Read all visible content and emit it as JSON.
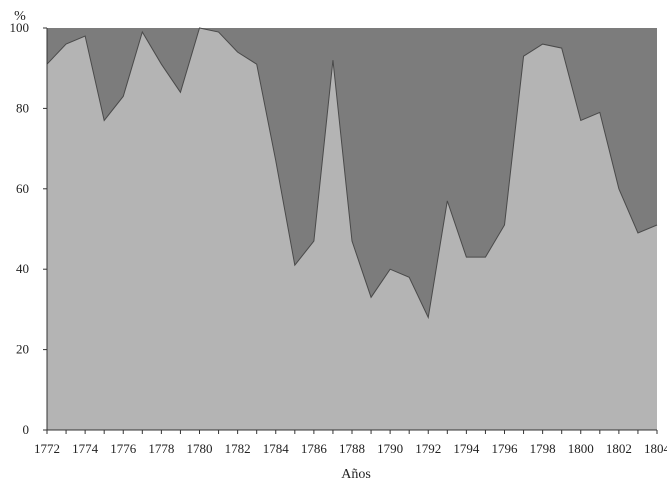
{
  "chart_data": {
    "type": "area",
    "stacked_to": 100,
    "ylabel": "%",
    "xlabel": "Años",
    "ylim": [
      0,
      100
    ],
    "xlim": [
      1772,
      1804
    ],
    "yticks": [
      0,
      20,
      40,
      60,
      80,
      100
    ],
    "xticks": [
      1772,
      1774,
      1776,
      1778,
      1780,
      1782,
      1784,
      1786,
      1788,
      1790,
      1792,
      1794,
      1796,
      1798,
      1800,
      1802,
      1804
    ],
    "x": [
      1772,
      1773,
      1774,
      1775,
      1776,
      1777,
      1778,
      1779,
      1780,
      1781,
      1782,
      1783,
      1784,
      1785,
      1786,
      1787,
      1788,
      1789,
      1790,
      1791,
      1792,
      1793,
      1794,
      1795,
      1796,
      1797,
      1798,
      1799,
      1800,
      1801,
      1802,
      1803,
      1804
    ],
    "series": [
      {
        "color": "#b4b4b4",
        "values": [
          91,
          96,
          98,
          77,
          83,
          99,
          91,
          84,
          100,
          99,
          94,
          91,
          67,
          41,
          47,
          92,
          47,
          33,
          40,
          38,
          28,
          57,
          43,
          43,
          51,
          93,
          96,
          95,
          77,
          79,
          60,
          49,
          51
        ]
      },
      {
        "color": "#7c7c7c",
        "values": [
          9,
          4,
          2,
          23,
          17,
          1,
          9,
          16,
          0,
          1,
          6,
          9,
          33,
          59,
          53,
          8,
          53,
          67,
          60,
          62,
          72,
          43,
          57,
          57,
          49,
          7,
          4,
          5,
          23,
          21,
          40,
          51,
          49
        ]
      }
    ]
  }
}
